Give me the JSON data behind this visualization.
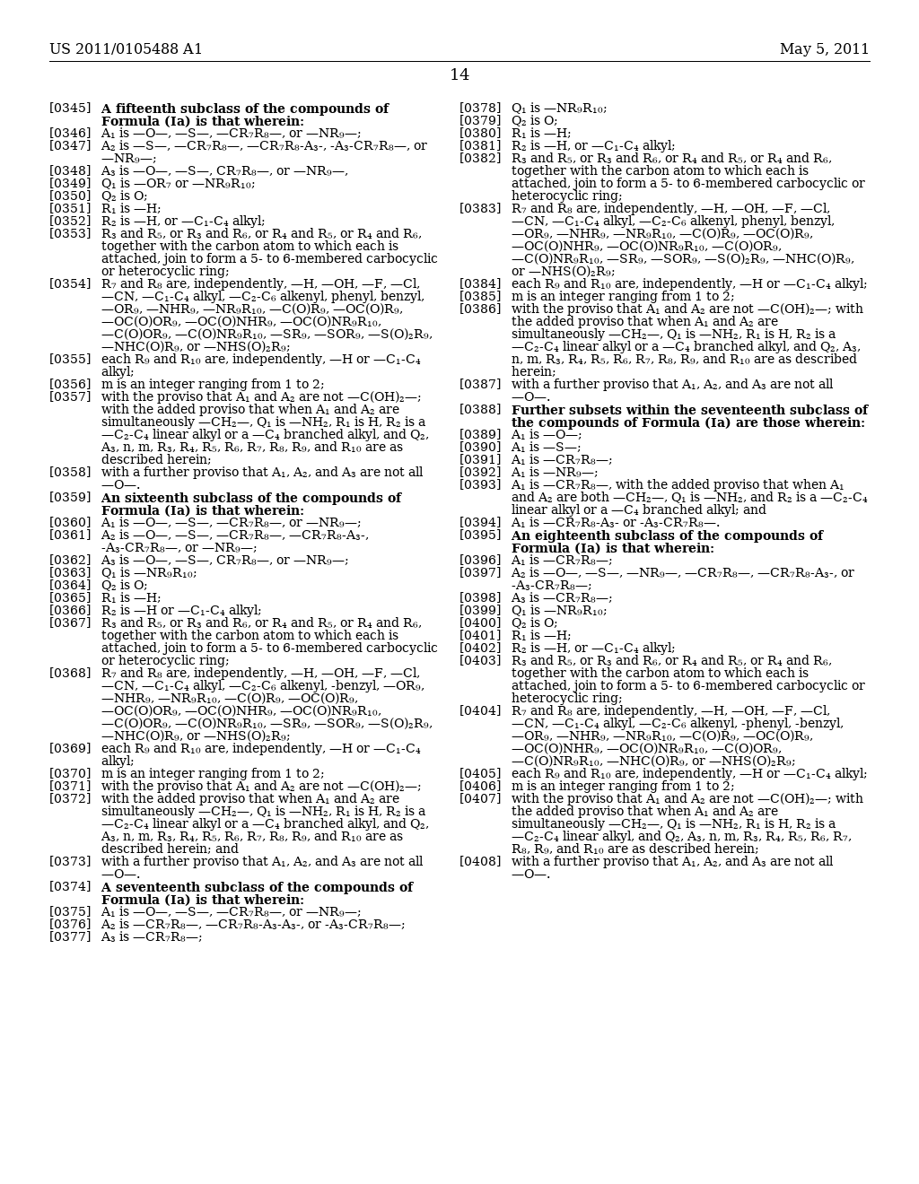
{
  "header_left": "US 2011/0105488 A1",
  "header_right": "May 5, 2011",
  "page_number": "14",
  "background_color": "#ffffff",
  "text_color": "#000000",
  "left_column": [
    {
      "tag": "[0345]",
      "text": "A fifteenth subclass of the compounds of Formula (Ia) is that wherein:",
      "bold": true
    },
    {
      "tag": "[0346]",
      "text": "A₁ is —O—, —S—, —CR₇R₈—, or —NR₉—;",
      "bold": false
    },
    {
      "tag": "[0347]",
      "text": "A₂ is —S—, —CR₇R₈—, —CR₇R₈-A₃-, -A₃-CR₇R₈—, or —NR₉—;",
      "bold": false
    },
    {
      "tag": "[0348]",
      "text": "A₃ is —O—, —S—, CR₇R₈—, or —NR₉—,",
      "bold": false
    },
    {
      "tag": "[0349]",
      "text": "Q₁ is —OR₇ or —NR₉R₁₀;",
      "bold": false
    },
    {
      "tag": "[0350]",
      "text": "Q₂ is O;",
      "bold": false
    },
    {
      "tag": "[0351]",
      "text": "R₁ is —H;",
      "bold": false
    },
    {
      "tag": "[0352]",
      "text": "R₂ is —H, or —C₁-C₄ alkyl;",
      "bold": false
    },
    {
      "tag": "[0353]",
      "text": "R₃ and R₅, or R₃ and R₆, or R₄ and R₅, or R₄ and R₆, together with the carbon atom to which each is attached, join to form a 5- to 6-membered carbocyclic or heterocyclic ring;",
      "bold": false
    },
    {
      "tag": "[0354]",
      "text": "R₇ and R₈ are, independently, —H, —OH, —F, —Cl, —CN, —C₁-C₄ alkyl, —C₂-C₆ alkenyl, phenyl, benzyl, —OR₉, —NHR₉, —NR₉R₁₀, —C(O)R₉, —OC(O)R₉, —OC(O)OR₉, —OC(O)NHR₉, —OC(O)NR₉R₁₀, —C(O)OR₉, —C(O)NR₉R₁₀, —SR₉, —SOR₉, —S(O)₂R₉, —NHC(O)R₉, or —NHS(O)₂R₉;",
      "bold": false
    },
    {
      "tag": "[0355]",
      "text": "each R₉ and R₁₀ are, independently, —H or —C₁-C₄ alkyl;",
      "bold": false
    },
    {
      "tag": "[0356]",
      "text": "m is an integer ranging from 1 to 2;",
      "bold": false
    },
    {
      "tag": "[0357]",
      "text": "with the proviso that A₁ and A₂ are not —C(OH)₂—; with the added proviso that when A₁ and A₂ are simultaneously —CH₂—, Q₁ is —NH₂, R₁ is H, R₂ is a —C₂-C₄ linear alkyl or a —C₄ branched alkyl, and Q₂, A₃, n, m, R₃, R₄, R₅, R₆, R₇, R₈, R₉, and R₁₀ are as described herein;",
      "bold": false
    },
    {
      "tag": "[0358]",
      "text": "with a further proviso that A₁, A₂, and A₃ are not all —O—.",
      "bold": false
    },
    {
      "tag": "[0359]",
      "text": "An sixteenth subclass of the compounds of Formula (Ia) is that wherein:",
      "bold": true
    },
    {
      "tag": "[0360]",
      "text": "A₁ is —O—, —S—, —CR₇R₈—, or —NR₉—;",
      "bold": false
    },
    {
      "tag": "[0361]",
      "text": "A₂ is —O—, —S—, —CR₇R₈—, —CR₇R₈-A₃-, -A₃-CR₇R₈—, or —NR₉—;",
      "bold": false
    },
    {
      "tag": "[0362]",
      "text": "A₃ is —O—, —S—, CR₇R₈—, or —NR₉—;",
      "bold": false
    },
    {
      "tag": "[0363]",
      "text": "Q₁ is —NR₉R₁₀;",
      "bold": false
    },
    {
      "tag": "[0364]",
      "text": "Q₂ is O;",
      "bold": false
    },
    {
      "tag": "[0365]",
      "text": "R₁ is —H;",
      "bold": false
    },
    {
      "tag": "[0366]",
      "text": "R₂ is —H or —C₁-C₄ alkyl;",
      "bold": false
    },
    {
      "tag": "[0367]",
      "text": "R₃ and R₅, or R₃ and R₆, or R₄ and R₅, or R₄ and R₆, together with the carbon atom to which each is attached, join to form a 5- to 6-membered carbocyclic or heterocyclic ring;",
      "bold": false
    },
    {
      "tag": "[0368]",
      "text": "R₇ and R₈ are, independently, —H, —OH, —F, —Cl, —CN, —C₁-C₄ alkyl, —C₂-C₆ alkenyl, -benzyl, —OR₉, —NHR₉, —NR₉R₁₀, —C(O)R₉, —OC(O)R₉, —OC(O)OR₉, —OC(O)NHR₉, —OC(O)NR₉R₁₀, —C(O)OR₉, —C(O)NR₉R₁₀, —SR₉, —SOR₉, —S(O)₂R₉, —NHC(O)R₉, or —NHS(O)₂R₉;",
      "bold": false
    },
    {
      "tag": "[0369]",
      "text": "each R₉ and R₁₀ are, independently, —H or —C₁-C₄ alkyl;",
      "bold": false
    },
    {
      "tag": "[0370]",
      "text": "m is an integer ranging from 1 to 2;",
      "bold": false
    },
    {
      "tag": "[0371]",
      "text": "with the proviso that A₁ and A₂ are not —C(OH)₂—;",
      "bold": false
    },
    {
      "tag": "[0372]",
      "text": "with the added proviso that when A₁ and A₂ are simultaneously —CH₂—, Q₁ is —NH₂, R₁ is H, R₂ is a —C₂-C₄ linear alkyl or a —C₄ branched alkyl, and Q₂, A₃, n, m, R₃, R₄, R₅, R₆, R₇, R₈, R₉, and R₁₀ are as described herein; and",
      "bold": false
    },
    {
      "tag": "[0373]",
      "text": "with a further proviso that A₁, A₂, and A₃ are not all —O—.",
      "bold": false
    },
    {
      "tag": "[0374]",
      "text": "A seventeenth subclass of the compounds of Formula (Ia) is that wherein:",
      "bold": true
    },
    {
      "tag": "[0375]",
      "text": "A₁ is —O—, —S—, —CR₇R₈—, or —NR₉—;",
      "bold": false
    },
    {
      "tag": "[0376]",
      "text": "A₂ is —CR₇R₈—, —CR₇R₈-A₃-A₃-, or -A₃-CR₇R₈—;",
      "bold": false
    },
    {
      "tag": "[0377]",
      "text": "A₃ is —CR₇R₈—;",
      "bold": false
    }
  ],
  "right_column": [
    {
      "tag": "[0378]",
      "text": "Q₁ is —NR₉R₁₀;",
      "bold": false
    },
    {
      "tag": "[0379]",
      "text": "Q₂ is O;",
      "bold": false
    },
    {
      "tag": "[0380]",
      "text": "R₁ is —H;",
      "bold": false
    },
    {
      "tag": "[0381]",
      "text": "R₂ is —H, or —C₁-C₄ alkyl;",
      "bold": false
    },
    {
      "tag": "[0382]",
      "text": "R₃ and R₅, or R₃ and R₆, or R₄ and R₅, or R₄ and R₆, together with the carbon atom to which each is attached, join to form a 5- to 6-membered carbocyclic or heterocyclic ring;",
      "bold": false
    },
    {
      "tag": "[0383]",
      "text": "R₇ and R₈ are, independently, —H, —OH, —F, —Cl, —CN, —C₁-C₄ alkyl, —C₂-C₆ alkenyl, phenyl, benzyl, —OR₉, —NHR₉, —NR₉R₁₀, —C(O)R₉, —OC(O)R₉, —OC(O)NHR₉, —OC(O)NR₉R₁₀, —C(O)OR₉, —C(O)NR₉R₁₀, —SR₉, —SOR₉, —S(O)₂R₉, —NHC(O)R₉, or —NHS(O)₂R₉;",
      "bold": false
    },
    {
      "tag": "[0384]",
      "text": "each R₉ and R₁₀ are, independently, —H or —C₁-C₄ alkyl;",
      "bold": false
    },
    {
      "tag": "[0385]",
      "text": "m is an integer ranging from 1 to 2;",
      "bold": false
    },
    {
      "tag": "[0386]",
      "text": "with the proviso that A₁ and A₂ are not —C(OH)₂—; with the added proviso that when A₁ and A₂ are simultaneously —CH₂—, Q₁ is —NH₂, R₁ is H, R₂ is a —C₂-C₄ linear alkyl or a —C₄ branched alkyl, and Q₂, A₃, n, m, R₃, R₄, R₅, R₆, R₇, R₈, R₉, and R₁₀ are as described herein;",
      "bold": false
    },
    {
      "tag": "[0387]",
      "text": "with a further proviso that A₁, A₂, and A₃ are not all —O—.",
      "bold": false
    },
    {
      "tag": "[0388]",
      "text": "Further subsets within the seventeenth subclass of the compounds of Formula (Ia) are those wherein:",
      "bold": true
    },
    {
      "tag": "[0389]",
      "text": "A₁ is —O—;",
      "bold": false
    },
    {
      "tag": "[0390]",
      "text": "A₁ is —S—;",
      "bold": false
    },
    {
      "tag": "[0391]",
      "text": "A₁ is —CR₇R₈—;",
      "bold": false
    },
    {
      "tag": "[0392]",
      "text": "A₁ is —NR₉—;",
      "bold": false
    },
    {
      "tag": "[0393]",
      "text": "A₁ is —CR₇R₈—, with the added proviso that when A₁ and A₂ are both —CH₂—, Q₁ is —NH₂, and R₂ is a —C₂-C₄ linear alkyl or a —C₄ branched alkyl; and",
      "bold": false
    },
    {
      "tag": "[0394]",
      "text": "A₁ is —CR₇R₈-A₃- or -A₃-CR₇R₈—.",
      "bold": false
    },
    {
      "tag": "[0395]",
      "text": "An eighteenth subclass of the compounds of Formula (Ia) is that wherein:",
      "bold": true
    },
    {
      "tag": "[0396]",
      "text": "A₁ is —CR₇R₈—;",
      "bold": false
    },
    {
      "tag": "[0397]",
      "text": "A₂ is —O—, —S—, —NR₉—, —CR₇R₈—, —CR₇R₈-A₃-, or -A₃-CR₇R₈—;",
      "bold": false
    },
    {
      "tag": "[0398]",
      "text": "A₃ is —CR₇R₈—;",
      "bold": false
    },
    {
      "tag": "[0399]",
      "text": "Q₁ is —NR₉R₁₀;",
      "bold": false
    },
    {
      "tag": "[0400]",
      "text": "Q₂ is O;",
      "bold": false
    },
    {
      "tag": "[0401]",
      "text": "R₁ is —H;",
      "bold": false
    },
    {
      "tag": "[0402]",
      "text": "R₂ is —H, or —C₁-C₄ alkyl;",
      "bold": false
    },
    {
      "tag": "[0403]",
      "text": "R₃ and R₅, or R₃ and R₆, or R₄ and R₅, or R₄ and R₆, together with the carbon atom to which each is attached, join to form a 5- to 6-membered carbocyclic or heterocyclic ring;",
      "bold": false
    },
    {
      "tag": "[0404]",
      "text": "R₇ and R₈ are, independently, —H, —OH, —F, —Cl, —CN, —C₁-C₄ alkyl, —C₂-C₆ alkenyl, -phenyl, -benzyl, —OR₉, —NHR₉, —NR₉R₁₀, —C(O)R₉, —OC(O)R₉, —OC(O)NHR₉, —OC(O)NR₉R₁₀, —C(O)OR₉, —C(O)NR₉R₁₀, —NHC(O)R₉, or —NHS(O)₂R₉;",
      "bold": false
    },
    {
      "tag": "[0405]",
      "text": "each R₉ and R₁₀ are, independently, —H or —C₁-C₄ alkyl;",
      "bold": false
    },
    {
      "tag": "[0406]",
      "text": "m is an integer ranging from 1 to 2;",
      "bold": false
    },
    {
      "tag": "[0407]",
      "text": "with the proviso that A₁ and A₂ are not —C(OH)₂—; with the added proviso that when A₁ and A₂ are simultaneously —CH₂—, Q₁ is —NH₂, R₁ is H, R₂ is a —C₂-C₄ linear alkyl, and Q₂, A₃, n, m, R₃, R₄, R₅, R₆, R₇, R₈, R₉, and R₁₀ are as described herein;",
      "bold": false
    },
    {
      "tag": "[0408]",
      "text": "with a further proviso that A₁, A₂, and A₃ are not all —O—.",
      "bold": false
    }
  ]
}
